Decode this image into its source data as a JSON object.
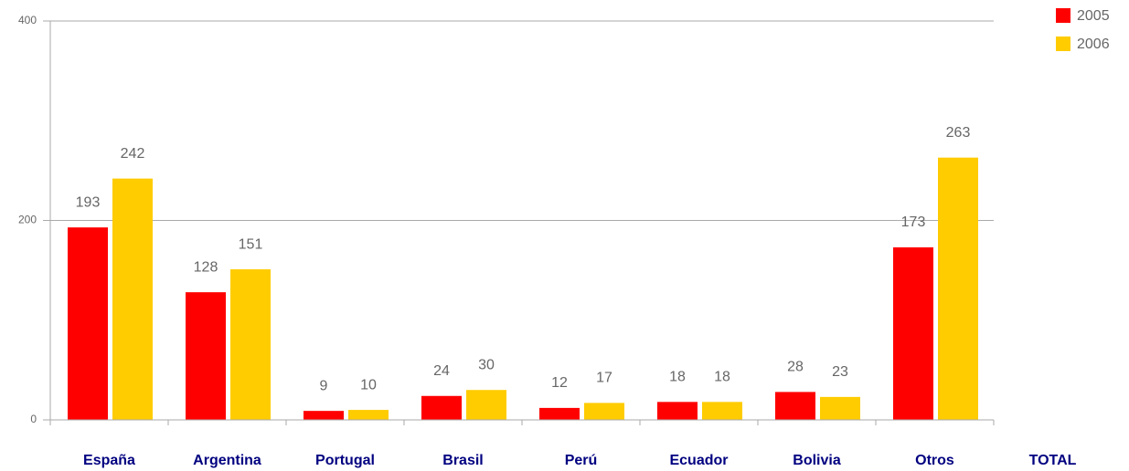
{
  "chart_data": {
    "type": "bar",
    "categories": [
      "España",
      "Argentina",
      "Portugal",
      "Brasil",
      "Perú",
      "Ecuador",
      "Bolivia",
      "Otros",
      "TOTAL"
    ],
    "series": [
      {
        "name": "2005",
        "color": "#ff0000",
        "values": [
          193,
          128,
          9,
          24,
          12,
          18,
          28,
          173,
          null
        ]
      },
      {
        "name": "2006",
        "color": "#ffcc00",
        "values": [
          242,
          151,
          10,
          30,
          17,
          18,
          23,
          263,
          null
        ]
      }
    ],
    "ylim": [
      0,
      400
    ],
    "yticks": [
      0,
      200,
      400
    ],
    "grid": true,
    "legend": "top-right"
  }
}
